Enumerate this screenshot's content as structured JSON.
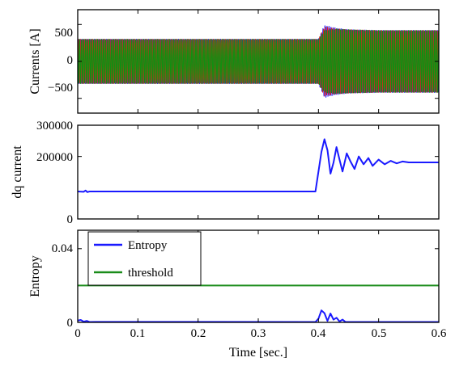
{
  "chart_data": [
    {
      "id": "currents",
      "type": "line",
      "title": "",
      "xlabel": "",
      "ylabel": "Currents [A]",
      "xlim": [
        0,
        0.6
      ],
      "ylim": [
        -700,
        700
      ],
      "yticks": [
        500,
        0,
        -500
      ],
      "yticklabels": [
        "500",
        "0",
        "−500"
      ],
      "xticks": [
        0,
        0.1,
        0.2,
        0.3,
        0.4,
        0.5,
        0.6
      ],
      "grid": false,
      "frequency_hz": 300,
      "series": [
        {
          "color": "#1a1aff",
          "phase_deg": 0,
          "points": [
            [
              0,
              300
            ],
            [
              0.4,
              300
            ],
            [
              0.41,
              490
            ],
            [
              0.43,
              450
            ],
            [
              0.45,
              430
            ],
            [
              0.5,
              420
            ],
            [
              0.6,
              420
            ]
          ]
        },
        {
          "color": "#e02020",
          "phase_deg": -120,
          "points": [
            [
              0,
              300
            ],
            [
              0.4,
              300
            ],
            [
              0.41,
              470
            ],
            [
              0.43,
              440
            ],
            [
              0.45,
              430
            ],
            [
              0.5,
              420
            ],
            [
              0.6,
              420
            ]
          ]
        },
        {
          "color": "#109010",
          "phase_deg": 120,
          "points": [
            [
              0,
              300
            ],
            [
              0.4,
              300
            ],
            [
              0.41,
              420
            ],
            [
              0.43,
              440
            ],
            [
              0.45,
              430
            ],
            [
              0.5,
              420
            ],
            [
              0.6,
              420
            ]
          ]
        }
      ]
    },
    {
      "id": "dq",
      "type": "line",
      "title": "",
      "xlabel": "",
      "ylabel": "dq current",
      "xlim": [
        0,
        0.6
      ],
      "ylim": [
        0,
        300000
      ],
      "yticks": [
        300000,
        200000,
        0
      ],
      "yticklabels": [
        "300000",
        "200000",
        "0"
      ],
      "xticks": [
        0,
        0.1,
        0.2,
        0.3,
        0.4,
        0.5,
        0.6
      ],
      "grid": false,
      "series": [
        {
          "color": "#1a1aff",
          "points": [
            [
              0,
              88000
            ],
            [
              0.01,
              87000
            ],
            [
              0.013,
              91000
            ],
            [
              0.016,
              86000
            ],
            [
              0.02,
              88000
            ],
            [
              0.395,
              88000
            ],
            [
              0.405,
              215000
            ],
            [
              0.41,
              255000
            ],
            [
              0.415,
              220000
            ],
            [
              0.42,
              145000
            ],
            [
              0.425,
              180000
            ],
            [
              0.43,
              230000
            ],
            [
              0.435,
              190000
            ],
            [
              0.44,
              152000
            ],
            [
              0.447,
              210000
            ],
            [
              0.453,
              185000
            ],
            [
              0.46,
              160000
            ],
            [
              0.467,
              200000
            ],
            [
              0.475,
              175000
            ],
            [
              0.483,
              195000
            ],
            [
              0.49,
              170000
            ],
            [
              0.5,
              190000
            ],
            [
              0.51,
              175000
            ],
            [
              0.52,
              186000
            ],
            [
              0.53,
              178000
            ],
            [
              0.54,
              184000
            ],
            [
              0.55,
              181000
            ],
            [
              0.6,
              181000
            ]
          ]
        }
      ]
    },
    {
      "id": "entropy",
      "type": "line",
      "title": "",
      "xlabel": "Time [sec.]",
      "ylabel": "Entropy",
      "xlim": [
        0,
        0.6
      ],
      "ylim": [
        0,
        0.05
      ],
      "yticks": [
        0.04,
        0
      ],
      "yticklabels": [
        "0.04",
        "0"
      ],
      "xticks": [
        0,
        0.1,
        0.2,
        0.3,
        0.4,
        0.5,
        0.6
      ],
      "xticklabels": [
        "0",
        "0.1",
        "0.2",
        "0.3",
        "0.4",
        "0.5",
        "0.6"
      ],
      "grid": false,
      "legend": {
        "placement": "top-left",
        "entries": [
          "Entropy",
          "threshold"
        ]
      },
      "series": [
        {
          "name": "Entropy",
          "color": "#1a1aff",
          "points": [
            [
              0,
              0.001
            ],
            [
              0.005,
              0.0013
            ],
            [
              0.01,
              0.0004
            ],
            [
              0.015,
              0.0008
            ],
            [
              0.02,
              0.0002
            ],
            [
              0.03,
              0.0003
            ],
            [
              0.395,
              0.0002
            ],
            [
              0.4,
              0.002
            ],
            [
              0.405,
              0.0065
            ],
            [
              0.41,
              0.005
            ],
            [
              0.415,
              0.0008
            ],
            [
              0.42,
              0.0048
            ],
            [
              0.425,
              0.0015
            ],
            [
              0.43,
              0.0025
            ],
            [
              0.435,
              0.0005
            ],
            [
              0.44,
              0.0015
            ],
            [
              0.445,
              0.0002
            ],
            [
              0.6,
              0.0002
            ]
          ]
        },
        {
          "name": "threshold",
          "color": "#1a8c1a",
          "points": [
            [
              0,
              0.02
            ],
            [
              0.6,
              0.02
            ]
          ]
        }
      ]
    }
  ]
}
